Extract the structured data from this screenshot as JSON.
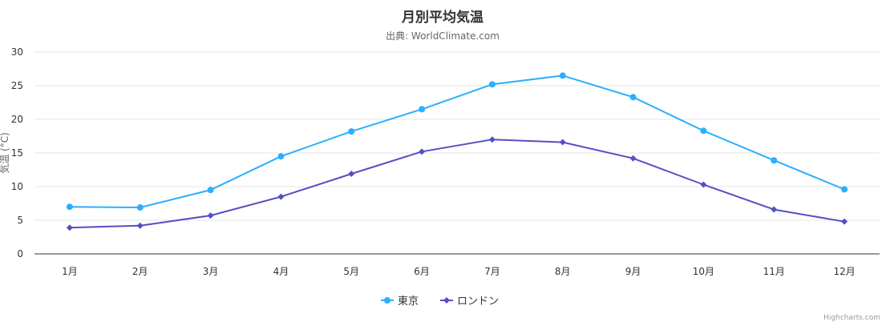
{
  "chart_data": {
    "type": "line",
    "title": "月別平均気温",
    "subtitle": "出典: WorldClimate.com",
    "ylabel": "気温 (°C)",
    "xlabel": "",
    "categories": [
      "1月",
      "2月",
      "3月",
      "4月",
      "5月",
      "6月",
      "7月",
      "8月",
      "9月",
      "10月",
      "11月",
      "12月"
    ],
    "ylim": [
      0,
      30
    ],
    "yticks": [
      "0",
      "5",
      "10",
      "15",
      "20",
      "25",
      "30"
    ],
    "grid": true,
    "legend_position": "bottom-center",
    "series": [
      {
        "name": "東京",
        "color": "#2caffe",
        "marker": "circle",
        "values": [
          7.0,
          6.9,
          9.5,
          14.5,
          18.2,
          21.5,
          25.2,
          26.5,
          23.3,
          18.3,
          13.9,
          9.6
        ]
      },
      {
        "name": "ロンドン",
        "color": "#544fc5",
        "marker": "diamond",
        "values": [
          3.9,
          4.2,
          5.7,
          8.5,
          11.9,
          15.2,
          17.0,
          16.6,
          14.2,
          10.3,
          6.6,
          4.8
        ]
      }
    ],
    "credits": "Highcharts.com"
  }
}
